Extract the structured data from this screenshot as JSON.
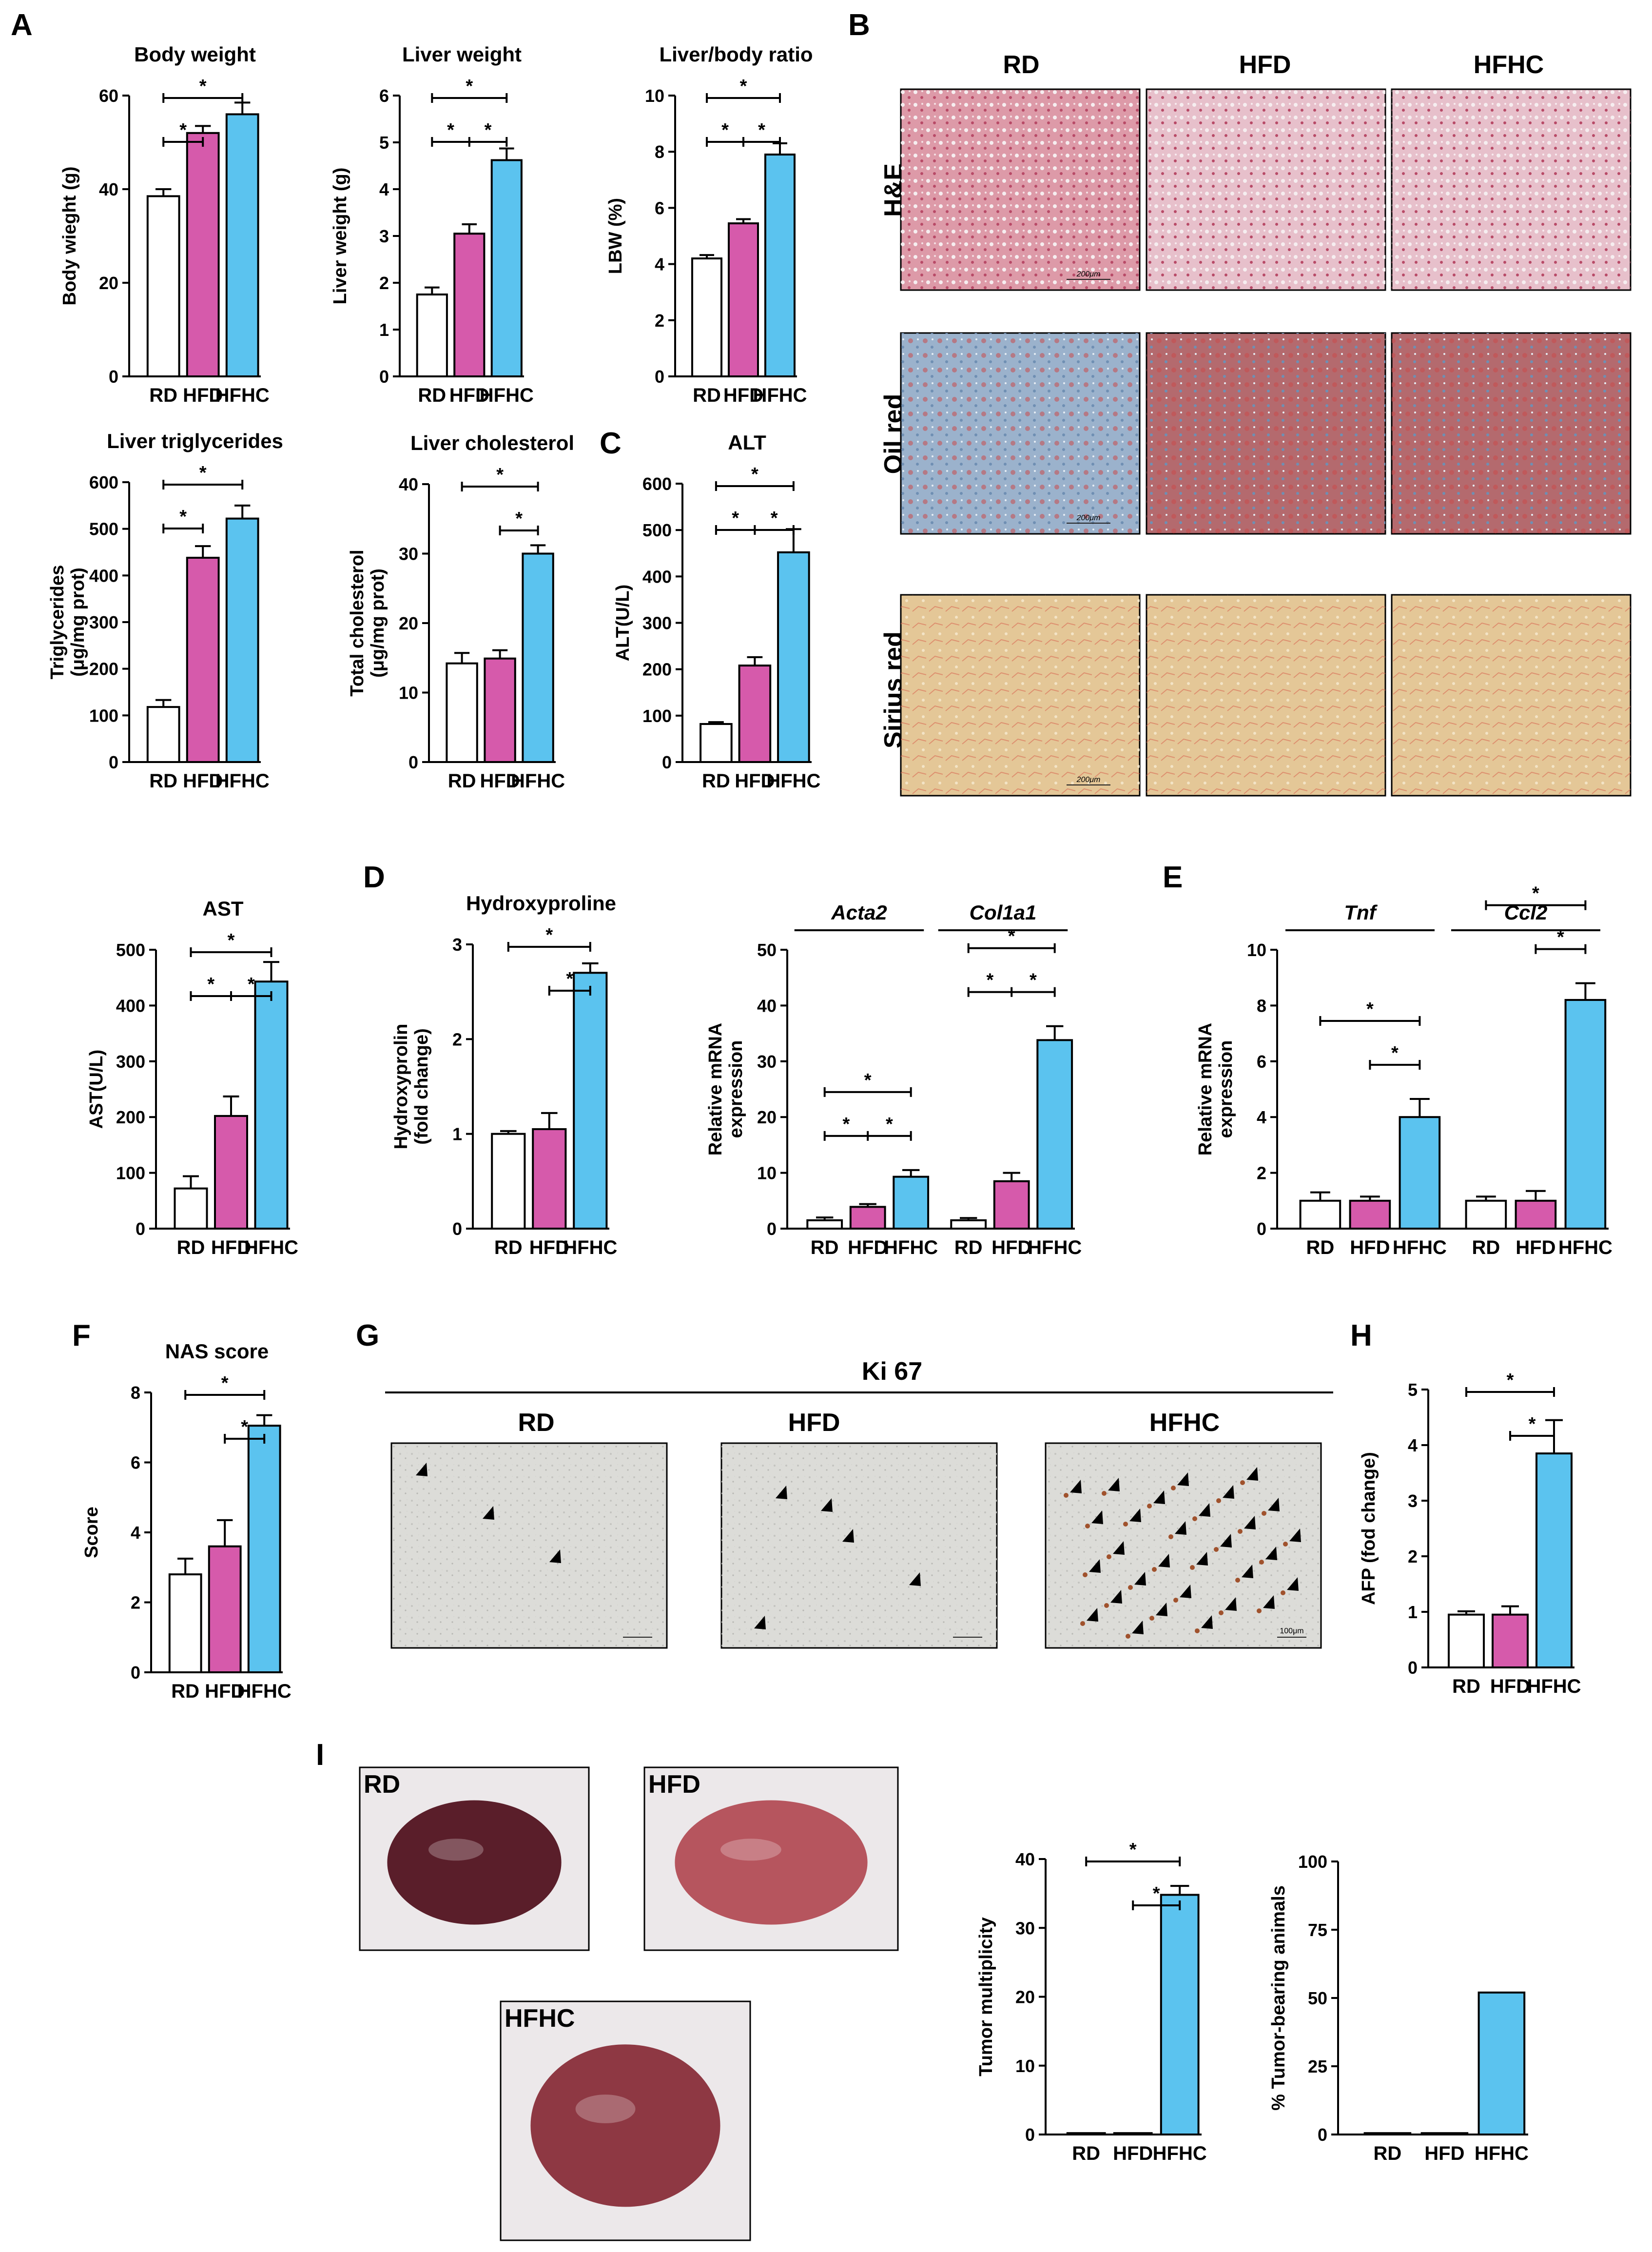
{
  "panel_labels": {
    "A": "A",
    "B": "B",
    "C": "C",
    "D": "D",
    "E": "E",
    "F": "F",
    "G": "G",
    "H": "H",
    "I": "I"
  },
  "colors": {
    "RD": "#ffffff",
    "HFD": "#d65aab",
    "HFHC": "#5bc3ef",
    "edge": "#000000"
  },
  "histology": {
    "columns": [
      "RD",
      "HFD",
      "HFHC"
    ],
    "rows": [
      "H&E",
      "Oil red",
      "Sirius red"
    ],
    "scale_label": "200μm",
    "tint": {
      "H&E": "#dd9aa8",
      "Oil red": "#9bb2cc",
      "Sirius red": "#e4c797"
    }
  },
  "ki67": {
    "title": "Ki 67",
    "columns": [
      "RD",
      "HFD",
      "HFHC"
    ],
    "scale_label": "100μm",
    "arrow_counts": [
      3,
      5,
      30
    ]
  },
  "photos": {
    "labels": [
      "RD",
      "HFD",
      "HFHC"
    ]
  },
  "chart_data": [
    {
      "id": "bw",
      "type": "bar",
      "title": "Body weight",
      "xlabel": "",
      "ylabel": "Body wieght (g)",
      "categories": [
        "RD",
        "HFD",
        "HFHC"
      ],
      "values": [
        38.5,
        52,
        56
      ],
      "errors": [
        1.5,
        1.5,
        2.5
      ],
      "ylim": [
        0,
        60
      ],
      "yticks": [
        "0",
        "20",
        "40",
        "60"
      ],
      "sig": [
        {
          "a": 0,
          "b": 2,
          "label": "*"
        },
        {
          "a": 0,
          "b": 1,
          "label": "*"
        }
      ]
    },
    {
      "id": "lw",
      "type": "bar",
      "title": "Liver weight",
      "xlabel": "",
      "ylabel": "Liver weight (g)",
      "categories": [
        "RD",
        "HFD",
        "HFHC"
      ],
      "values": [
        1.75,
        3.05,
        4.62
      ],
      "errors": [
        0.15,
        0.2,
        0.25
      ],
      "ylim": [
        0,
        6
      ],
      "yticks": [
        "0",
        "1",
        "2",
        "3",
        "4",
        "5",
        "6"
      ],
      "sig": [
        {
          "a": 0,
          "b": 2,
          "label": "*"
        },
        {
          "a": 0,
          "b": 1,
          "c": 2,
          "label1": "*",
          "label2": "*"
        }
      ]
    },
    {
      "id": "lbr",
      "type": "bar",
      "title": "Liver/body ratio",
      "xlabel": "",
      "ylabel": "LBW (%)",
      "categories": [
        "RD",
        "HFD",
        "HFHC"
      ],
      "values": [
        4.2,
        5.45,
        7.9
      ],
      "errors": [
        0.12,
        0.15,
        0.4
      ],
      "ylim": [
        0,
        10
      ],
      "yticks": [
        "0",
        "2",
        "4",
        "6",
        "8",
        "10"
      ],
      "sig": [
        {
          "a": 0,
          "b": 2,
          "label": "*"
        },
        {
          "a": 0,
          "b": 1,
          "c": 2,
          "label1": "*",
          "label2": "*"
        }
      ]
    },
    {
      "id": "tg",
      "type": "bar",
      "title": "Liver triglycerides",
      "xlabel": "",
      "ylabel": "Triglycerides (μg/mg prot)",
      "categories": [
        "RD",
        "HFD",
        "HFHC"
      ],
      "values": [
        118,
        438,
        522
      ],
      "errors": [
        15,
        25,
        28
      ],
      "ylim": [
        0,
        600
      ],
      "yticks": [
        "0",
        "100",
        "200",
        "300",
        "400",
        "500",
        "600"
      ],
      "sig": [
        {
          "a": 0,
          "b": 2,
          "label": "*"
        },
        {
          "a": 0,
          "b": 1,
          "label": "*"
        }
      ]
    },
    {
      "id": "chol",
      "type": "bar",
      "title": "Liver cholesterol",
      "xlabel": "",
      "ylabel": "Total cholesterol (μg/mg prot)",
      "categories": [
        "RD",
        "HFD",
        "HFHC"
      ],
      "values": [
        14.2,
        14.9,
        30
      ],
      "errors": [
        1.5,
        1.2,
        1.2
      ],
      "ylim": [
        0,
        40
      ],
      "yticks": [
        "0",
        "10",
        "20",
        "30",
        "40"
      ],
      "sig": [
        {
          "a": 0,
          "b": 2,
          "label": "*"
        },
        {
          "a": 1,
          "b": 2,
          "label": "*"
        }
      ]
    },
    {
      "id": "alt",
      "type": "bar",
      "title": "ALT",
      "xlabel": "",
      "ylabel": "ALT(U/L)",
      "categories": [
        "RD",
        "HFD",
        "HFHC"
      ],
      "values": [
        82,
        208,
        452
      ],
      "errors": [
        4,
        18,
        50
      ],
      "ylim": [
        0,
        600
      ],
      "yticks": [
        "0",
        "100",
        "200",
        "300",
        "400",
        "500",
        "600"
      ],
      "sig": [
        {
          "a": 0,
          "b": 2,
          "label": "*"
        },
        {
          "a": 0,
          "b": 1,
          "c": 2,
          "label1": "*",
          "label2": "*"
        }
      ]
    },
    {
      "id": "ast",
      "type": "bar",
      "title": "AST",
      "xlabel": "",
      "ylabel": "AST(U/L)",
      "categories": [
        "RD",
        "HFD",
        "HFHC"
      ],
      "values": [
        72,
        202,
        443
      ],
      "errors": [
        22,
        35,
        35
      ],
      "ylim": [
        0,
        500
      ],
      "yticks": [
        "0",
        "100",
        "200",
        "300",
        "400",
        "500"
      ],
      "sig": [
        {
          "a": 0,
          "b": 2,
          "label": "*"
        },
        {
          "a": 0,
          "b": 1,
          "c": 2,
          "label1": "*",
          "label2": "*"
        }
      ]
    },
    {
      "id": "hyp",
      "type": "bar",
      "title": "Hydroxyproline",
      "xlabel": "",
      "ylabel": "Hydroxyprolin (fold change)",
      "categories": [
        "RD",
        "HFD",
        "HFHC"
      ],
      "values": [
        1.0,
        1.05,
        2.7
      ],
      "errors": [
        0.03,
        0.17,
        0.1
      ],
      "ylim": [
        0,
        3
      ],
      "yticks": [
        "0",
        "1",
        "2",
        "3"
      ],
      "sig": [
        {
          "a": 0,
          "b": 2,
          "label": "*"
        },
        {
          "a": 1,
          "b": 2,
          "label": "*"
        }
      ]
    },
    {
      "id": "fib",
      "type": "bar",
      "title": "",
      "xlabel": "",
      "ylabel": "Relative mRNA expression",
      "categories": [
        "RD",
        "HFD",
        "HFHC",
        "RD",
        "HFD",
        "HFHC"
      ],
      "groups": [
        {
          "name": "Acta2",
          "values": [
            1.5,
            3.9,
            9.3
          ],
          "errors": [
            0.5,
            0.5,
            1.2
          ]
        },
        {
          "name": "Col1a1",
          "values": [
            1.5,
            8.5,
            33.8
          ],
          "errors": [
            0.4,
            1.5,
            2.5
          ]
        }
      ],
      "ylim": [
        0,
        50
      ],
      "yticks": [
        "0",
        "10",
        "20",
        "30",
        "40",
        "50"
      ],
      "sig": [
        {
          "g": 0,
          "a": 0,
          "b": 2,
          "label": "*"
        },
        {
          "g": 0,
          "a": 0,
          "b": 1,
          "c": 2,
          "label1": "*",
          "label2": "*"
        },
        {
          "g": 1,
          "a": 0,
          "b": 2,
          "label": "*"
        },
        {
          "g": 1,
          "a": 0,
          "b": 1,
          "c": 2,
          "label1": "*",
          "label2": "*"
        }
      ]
    },
    {
      "id": "inf",
      "type": "bar",
      "title": "",
      "xlabel": "",
      "ylabel": "Relative mRNA expression",
      "categories": [
        "RD",
        "HFD",
        "HFHC",
        "RD",
        "HFD",
        "HFHC"
      ],
      "groups": [
        {
          "name": "Tnf",
          "values": [
            1.0,
            1.0,
            4.0
          ],
          "errors": [
            0.3,
            0.15,
            0.65
          ]
        },
        {
          "name": "Ccl2",
          "values": [
            1.0,
            1.0,
            8.2
          ],
          "errors": [
            0.15,
            0.35,
            0.6
          ]
        }
      ],
      "ylim": [
        0,
        10
      ],
      "yticks": [
        "0",
        "2",
        "4",
        "6",
        "8",
        "10"
      ],
      "sig": [
        {
          "g": 0,
          "a": 0,
          "b": 2,
          "label": "*"
        },
        {
          "g": 0,
          "a": 1,
          "b": 2,
          "label": "*"
        },
        {
          "g": 1,
          "a": 0,
          "b": 2,
          "label": "*"
        },
        {
          "g": 1,
          "a": 1,
          "b": 2,
          "label": "*"
        }
      ]
    },
    {
      "id": "nas",
      "type": "bar",
      "title": "NAS score",
      "xlabel": "",
      "ylabel": "Score",
      "categories": [
        "RD",
        "HFD",
        "HFHC"
      ],
      "values": [
        2.8,
        3.6,
        7.05
      ],
      "errors": [
        0.45,
        0.75,
        0.3
      ],
      "ylim": [
        0,
        8
      ],
      "yticks": [
        "0",
        "2",
        "4",
        "6",
        "8"
      ],
      "sig": [
        {
          "a": 0,
          "b": 2,
          "label": "*"
        },
        {
          "a": 1,
          "b": 2,
          "label": "*"
        }
      ]
    },
    {
      "id": "afp",
      "type": "bar",
      "title": "",
      "xlabel": "",
      "ylabel": "AFP (fod change)",
      "categories": [
        "RD",
        "HFD",
        "HFHC"
      ],
      "values": [
        0.95,
        0.95,
        3.85
      ],
      "errors": [
        0.06,
        0.15,
        0.6
      ],
      "ylim": [
        0,
        5
      ],
      "yticks": [
        "0",
        "1",
        "2",
        "3",
        "4",
        "5"
      ],
      "sig": [
        {
          "a": 0,
          "b": 2,
          "label": "*"
        },
        {
          "a": 1,
          "b": 2,
          "label": "*"
        }
      ]
    },
    {
      "id": "tm",
      "type": "bar",
      "title": "",
      "xlabel": "",
      "ylabel": "Tumor multiplicity",
      "categories": [
        "RD",
        "HFD",
        "HFHC"
      ],
      "values": [
        0.2,
        0.2,
        34.8
      ],
      "errors": [
        0,
        0,
        1.3
      ],
      "ylim": [
        0,
        40
      ],
      "yticks": [
        "0",
        "10",
        "20",
        "30",
        "40"
      ],
      "sig": [
        {
          "a": 0,
          "b": 2,
          "label": "*"
        },
        {
          "a": 1,
          "b": 2,
          "label": "*"
        }
      ]
    },
    {
      "id": "tb",
      "type": "bar",
      "title": "",
      "xlabel": "",
      "ylabel": "% Tumor-bearing animals",
      "categories": [
        "RD",
        "HFD",
        "HFHC"
      ],
      "values": [
        0.5,
        0.5,
        52
      ],
      "errors": [
        0,
        0,
        0
      ],
      "ylim": [
        0,
        100
      ],
      "yticks": [
        "0",
        "25",
        "50",
        "75",
        "100"
      ],
      "sig": []
    }
  ]
}
